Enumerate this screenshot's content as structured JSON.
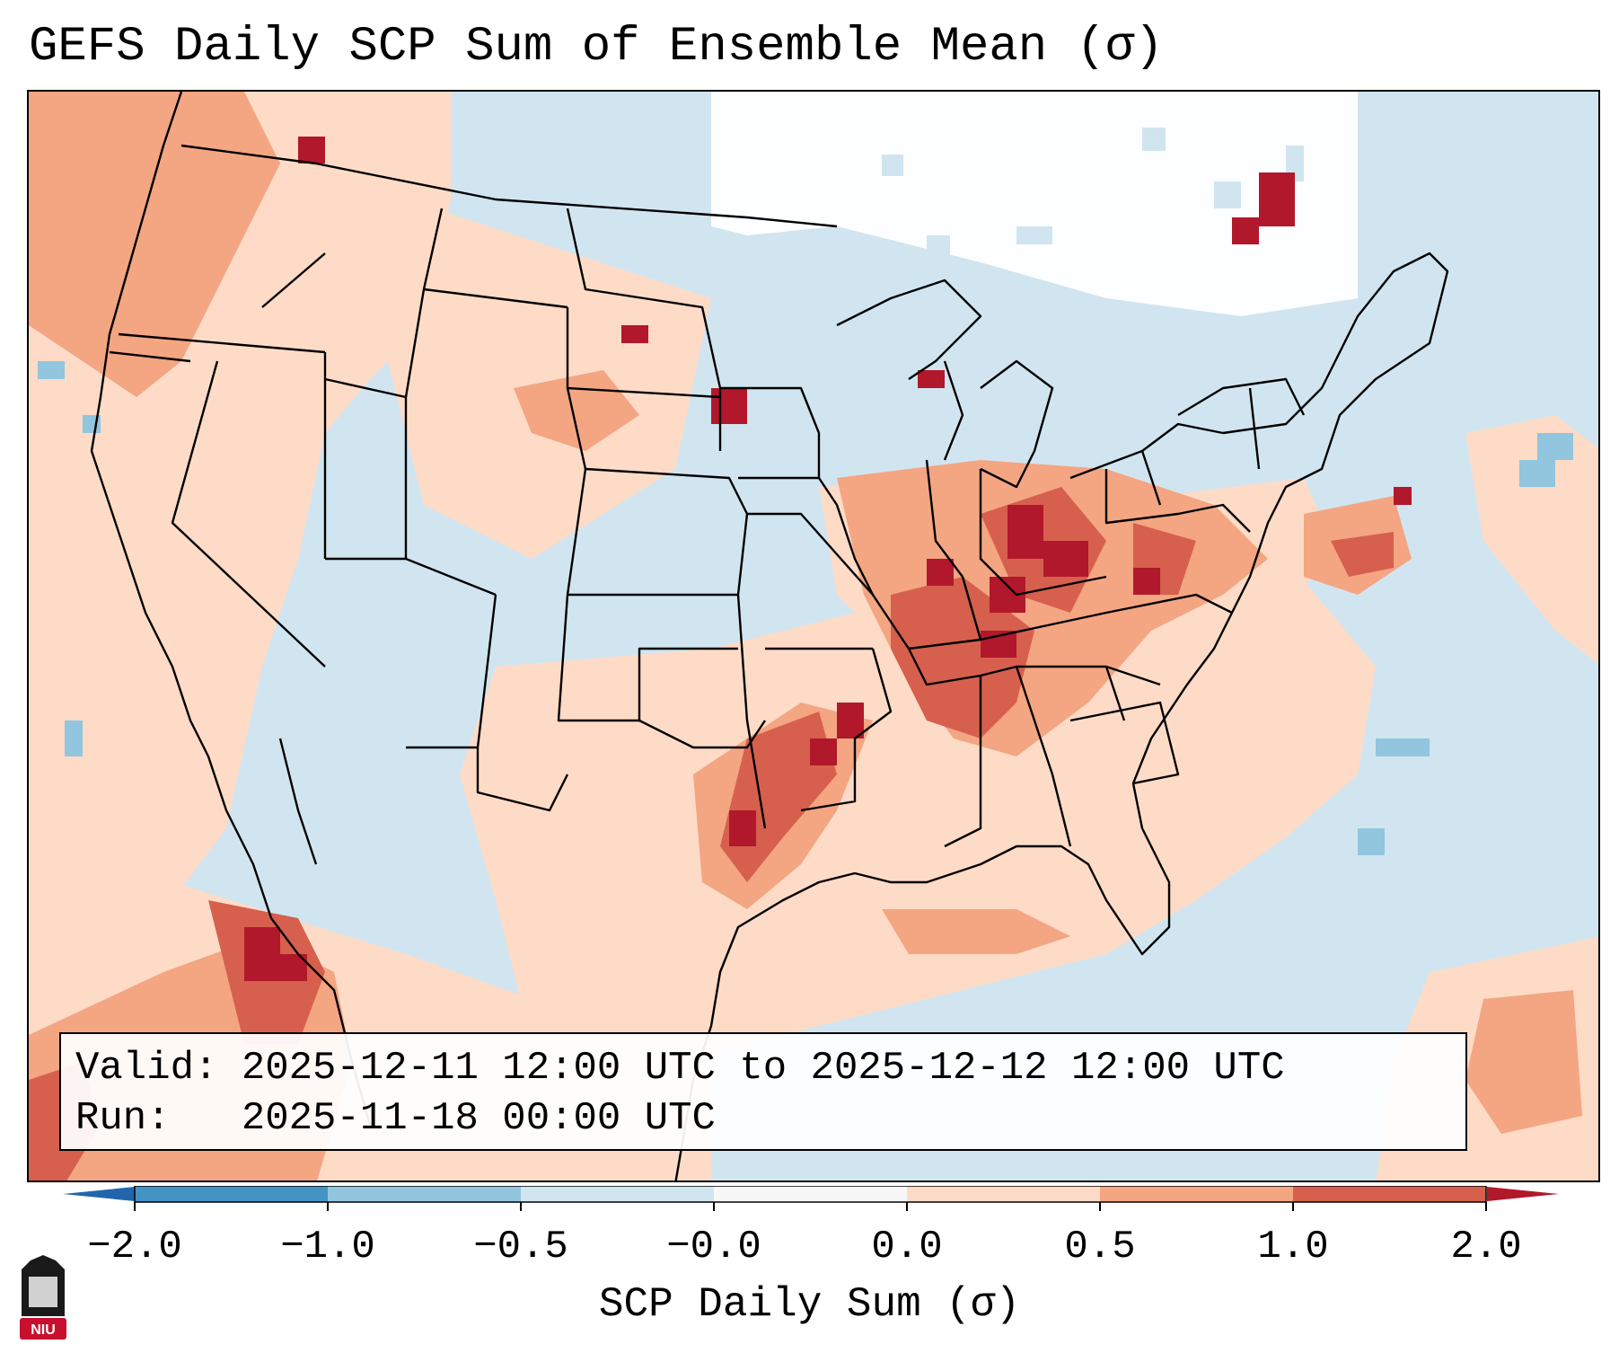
{
  "title": "GEFS Daily SCP Sum of Ensemble Mean (σ)",
  "info": {
    "valid_label": "Valid:",
    "valid_value": "2025-12-11 12:00 UTC to 2025-12-12 12:00 UTC",
    "run_label": "Run:",
    "run_value": "2025-11-18 00:00 UTC"
  },
  "colorbar": {
    "label": "SCP Daily Sum (σ)",
    "ticks": [
      "−2.0",
      "−1.0",
      "−0.5",
      "−0.0",
      "0.0",
      "0.5",
      "1.0",
      "2.0"
    ],
    "segment_colors": [
      "#4393c3",
      "#92c5de",
      "#d1e5f0",
      "#f7f7f7",
      "#fddbc7",
      "#f4a582",
      "#d6604d"
    ],
    "extend_low_color": "#2166ac",
    "extend_high_color": "#b2182b"
  },
  "colors": {
    "ocean_background": "#d1e5f0",
    "light_positive": "#fddbc7",
    "mid_positive": "#f4a582",
    "strong_positive": "#d6604d",
    "max_positive": "#b2182b",
    "light_negative": "#92c5de",
    "near_zero": "#ffffff"
  },
  "logo": {
    "text": "NIU",
    "color": "#c8102e"
  }
}
